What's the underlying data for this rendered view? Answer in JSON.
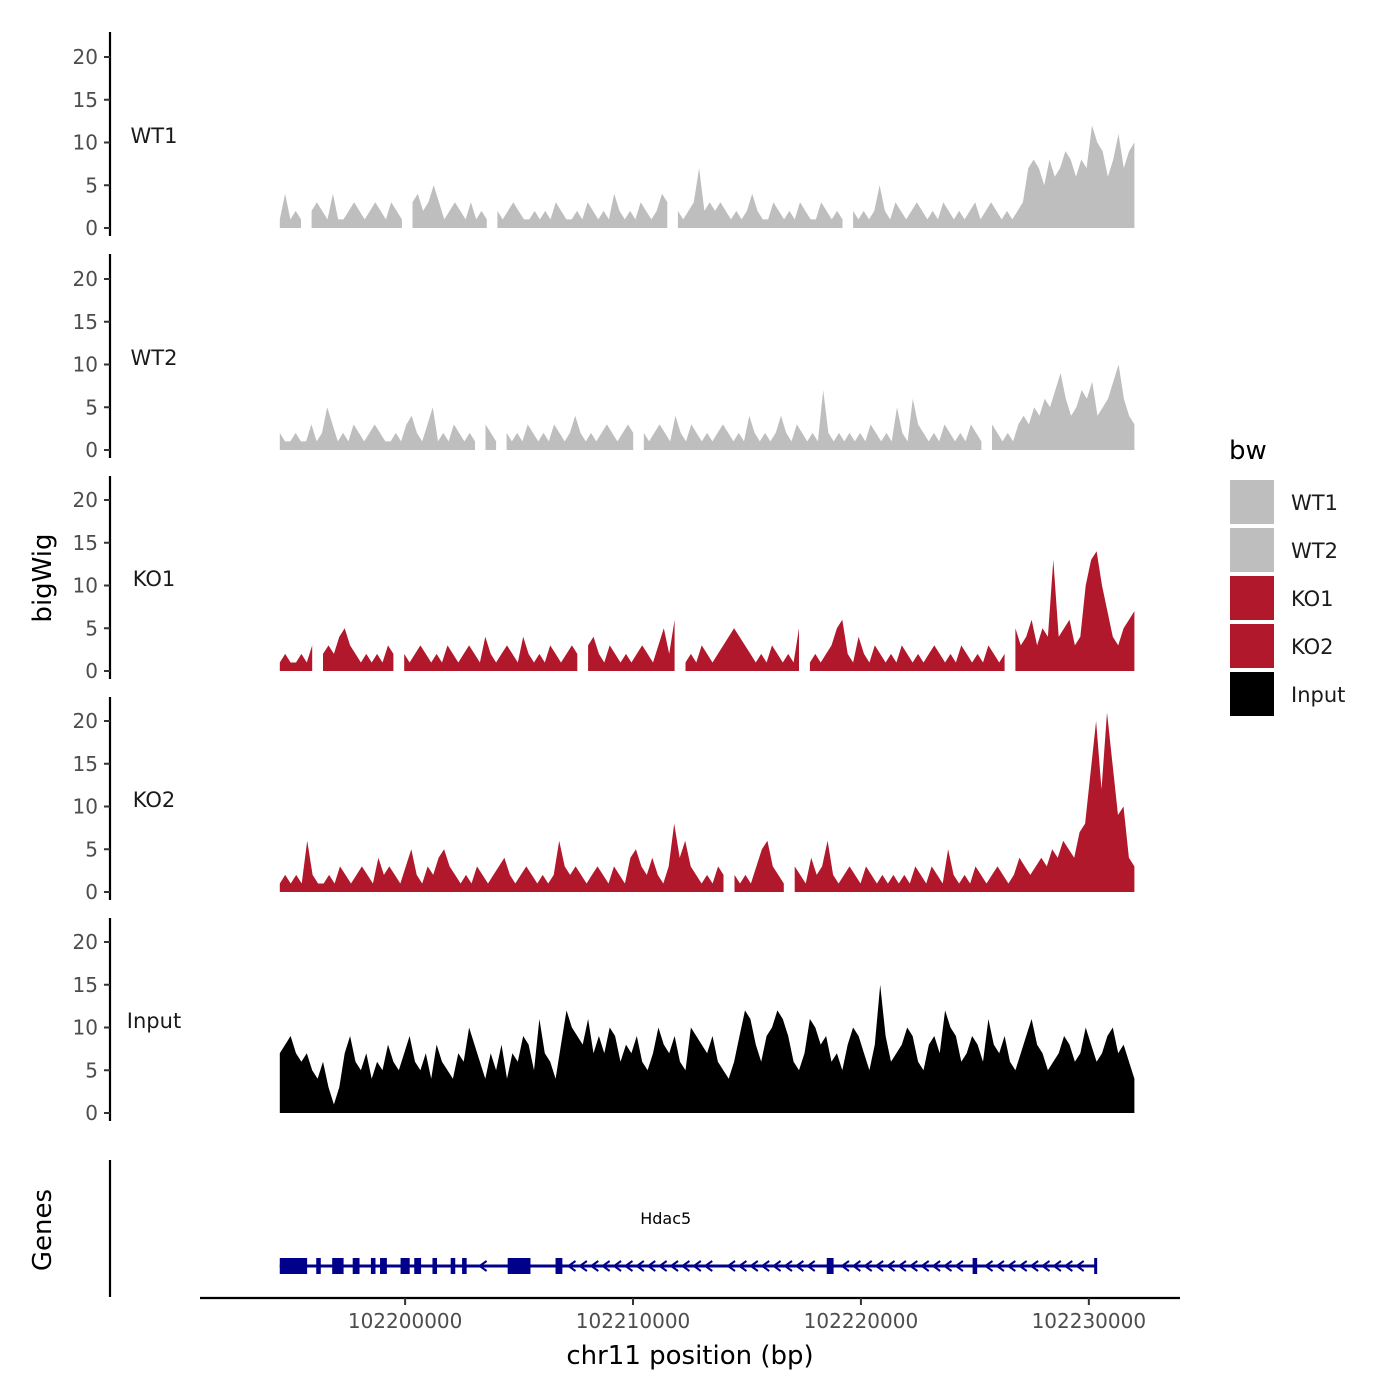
{
  "chart_data": {
    "type": "area",
    "ylabel": "bigWig",
    "xlabel": "chr11 position (bp)",
    "genes_label": "Genes",
    "legend_title": "bw",
    "legend": [
      {
        "name": "WT1",
        "color": "#bebebe"
      },
      {
        "name": "WT2",
        "color": "#bebebe"
      },
      {
        "name": "KO1",
        "color": "#b2182b"
      },
      {
        "name": "KO2",
        "color": "#b2182b"
      },
      {
        "name": "Input",
        "color": "#000000"
      }
    ],
    "ylim": [
      0,
      22
    ],
    "yticks": [
      0,
      5,
      10,
      15,
      20
    ],
    "xlim": [
      102191000,
      102234000
    ],
    "data_range": [
      102194500,
      102232000
    ],
    "xticks": [
      {
        "value": 102200000,
        "label": "102200000"
      },
      {
        "value": 102210000,
        "label": "102210000"
      },
      {
        "value": 102220000,
        "label": "102220000"
      },
      {
        "value": 102230000,
        "label": "102230000"
      }
    ],
    "tracks": [
      {
        "name": "WT1",
        "color": "#bebebe",
        "gaps": [
          [
            102195500,
            102195800
          ],
          [
            102200000,
            102200200
          ],
          [
            102203700,
            102203900
          ],
          [
            102211600,
            102211800
          ],
          [
            102219300,
            102219500
          ]
        ],
        "values": [
          1,
          4,
          1,
          2,
          1,
          1,
          2,
          3,
          2,
          1,
          4,
          1,
          1,
          2,
          3,
          2,
          1,
          2,
          3,
          2,
          1,
          3,
          2,
          1,
          1,
          3,
          4,
          2,
          3,
          5,
          3,
          1,
          2,
          3,
          2,
          1,
          3,
          1,
          2,
          1,
          1,
          2,
          1,
          2,
          3,
          2,
          1,
          1,
          2,
          1,
          2,
          1,
          3,
          2,
          1,
          1,
          2,
          1,
          3,
          2,
          1,
          2,
          1,
          4,
          2,
          1,
          2,
          1,
          3,
          2,
          1,
          2,
          4,
          3,
          1,
          2,
          1,
          2,
          3,
          7,
          2,
          3,
          2,
          3,
          2,
          1,
          2,
          1,
          2,
          4,
          2,
          1,
          1,
          3,
          2,
          1,
          2,
          1,
          3,
          2,
          1,
          1,
          3,
          2,
          1,
          2,
          1,
          3,
          2,
          1,
          2,
          1,
          2,
          5,
          2,
          1,
          3,
          2,
          1,
          2,
          3,
          2,
          1,
          2,
          1,
          3,
          2,
          1,
          2,
          1,
          2,
          3,
          1,
          2,
          3,
          2,
          1,
          2,
          1,
          2,
          3,
          7,
          8,
          7,
          5,
          8,
          6,
          7,
          9,
          8,
          6,
          8,
          7,
          12,
          10,
          9,
          6,
          8,
          11,
          7,
          9,
          10
        ]
      },
      {
        "name": "WT2",
        "color": "#bebebe",
        "gaps": [
          [
            102203100,
            102203500
          ],
          [
            102204000,
            102204300
          ],
          [
            102210100,
            102210300
          ],
          [
            102225500,
            102225700
          ]
        ],
        "values": [
          2,
          1,
          1,
          2,
          1,
          1,
          3,
          1,
          2,
          5,
          3,
          1,
          2,
          1,
          3,
          2,
          1,
          2,
          3,
          2,
          1,
          1,
          2,
          1,
          3,
          4,
          2,
          1,
          3,
          5,
          1,
          2,
          1,
          3,
          2,
          1,
          2,
          1,
          2,
          3,
          2,
          1,
          3,
          2,
          1,
          2,
          1,
          3,
          2,
          1,
          2,
          1,
          3,
          2,
          1,
          2,
          4,
          2,
          1,
          2,
          1,
          2,
          3,
          2,
          1,
          2,
          3,
          2,
          1,
          2,
          1,
          2,
          3,
          2,
          1,
          4,
          2,
          1,
          3,
          2,
          1,
          2,
          1,
          2,
          3,
          2,
          1,
          2,
          1,
          4,
          2,
          1,
          2,
          1,
          2,
          4,
          2,
          1,
          3,
          2,
          1,
          2,
          1,
          7,
          2,
          1,
          2,
          1,
          2,
          1,
          2,
          1,
          3,
          2,
          1,
          2,
          1,
          5,
          2,
          1,
          6,
          3,
          2,
          1,
          2,
          1,
          3,
          2,
          1,
          2,
          1,
          3,
          2,
          1,
          2,
          3,
          2,
          1,
          2,
          1,
          3,
          4,
          3,
          5,
          4,
          6,
          5,
          7,
          9,
          6,
          4,
          5,
          7,
          6,
          8,
          4,
          5,
          6,
          8,
          10,
          6,
          4,
          3
        ]
      },
      {
        "name": "KO1",
        "color": "#b2182b",
        "gaps": [
          [
            102196000,
            102196200
          ],
          [
            102199600,
            102199800
          ],
          [
            102207600,
            102207800
          ],
          [
            102212000,
            102212200
          ],
          [
            102217300,
            102217600
          ],
          [
            102219200,
            102219400
          ],
          [
            102226400,
            102226700
          ]
        ],
        "values": [
          1,
          2,
          1,
          1,
          2,
          1,
          3,
          1,
          2,
          3,
          2,
          4,
          5,
          3,
          2,
          1,
          2,
          1,
          2,
          1,
          3,
          2,
          1,
          2,
          1,
          2,
          3,
          2,
          1,
          2,
          1,
          3,
          2,
          1,
          2,
          3,
          2,
          1,
          4,
          2,
          1,
          2,
          3,
          2,
          1,
          4,
          2,
          1,
          2,
          1,
          3,
          2,
          1,
          2,
          3,
          2,
          1,
          3,
          4,
          2,
          1,
          3,
          2,
          1,
          2,
          1,
          2,
          3,
          2,
          1,
          3,
          5,
          2,
          6,
          3,
          1,
          2,
          1,
          3,
          2,
          1,
          2,
          3,
          4,
          5,
          4,
          3,
          2,
          1,
          2,
          1,
          3,
          2,
          1,
          2,
          1,
          5,
          2,
          1,
          2,
          1,
          2,
          3,
          5,
          6,
          2,
          1,
          4,
          2,
          1,
          3,
          2,
          1,
          2,
          1,
          3,
          2,
          1,
          2,
          1,
          2,
          3,
          2,
          1,
          2,
          1,
          3,
          2,
          1,
          2,
          1,
          3,
          2,
          1,
          2,
          4,
          5,
          3,
          4,
          6,
          3,
          5,
          4,
          13,
          4,
          5,
          6,
          3,
          4,
          10,
          13,
          14,
          10,
          7,
          4,
          3,
          5,
          6,
          7
        ]
      },
      {
        "name": "KO2",
        "color": "#b2182b",
        "gaps": [
          [
            102197400,
            102197600
          ],
          [
            102214200,
            102214400
          ],
          [
            102216800,
            102217000
          ],
          [
            102225300,
            102225500
          ]
        ],
        "values": [
          1,
          2,
          1,
          2,
          1,
          6,
          2,
          1,
          1,
          2,
          1,
          3,
          2,
          1,
          2,
          3,
          2,
          1,
          4,
          2,
          3,
          2,
          1,
          3,
          5,
          2,
          1,
          3,
          2,
          4,
          5,
          3,
          2,
          1,
          2,
          1,
          3,
          2,
          1,
          2,
          3,
          4,
          2,
          1,
          2,
          3,
          2,
          1,
          2,
          1,
          2,
          6,
          3,
          2,
          3,
          2,
          1,
          2,
          3,
          2,
          1,
          3,
          2,
          1,
          4,
          5,
          3,
          2,
          4,
          2,
          1,
          3,
          8,
          4,
          6,
          3,
          2,
          1,
          2,
          1,
          3,
          2,
          1,
          2,
          1,
          2,
          1,
          3,
          5,
          6,
          3,
          2,
          1,
          2,
          3,
          2,
          1,
          4,
          2,
          3,
          6,
          2,
          1,
          2,
          3,
          2,
          1,
          3,
          2,
          1,
          2,
          1,
          2,
          1,
          2,
          1,
          3,
          2,
          1,
          3,
          2,
          1,
          5,
          2,
          1,
          2,
          1,
          3,
          2,
          1,
          2,
          3,
          2,
          1,
          2,
          4,
          3,
          2,
          3,
          4,
          3,
          5,
          4,
          6,
          5,
          4,
          7,
          8,
          14,
          20,
          12,
          21,
          15,
          9,
          10,
          4,
          3
        ]
      },
      {
        "name": "Input",
        "color": "#000000",
        "gaps": [],
        "values": [
          7,
          8,
          9,
          7,
          6,
          7,
          5,
          4,
          6,
          3,
          1,
          3,
          7,
          9,
          6,
          5,
          7,
          4,
          6,
          5,
          8,
          6,
          5,
          7,
          9,
          6,
          5,
          7,
          4,
          8,
          6,
          5,
          4,
          7,
          6,
          10,
          8,
          6,
          4,
          7,
          5,
          8,
          4,
          7,
          6,
          9,
          8,
          5,
          11,
          7,
          6,
          4,
          8,
          12,
          10,
          9,
          8,
          11,
          7,
          9,
          7,
          10,
          9,
          6,
          8,
          7,
          9,
          6,
          5,
          7,
          10,
          8,
          7,
          9,
          6,
          5,
          10,
          9,
          8,
          7,
          9,
          6,
          5,
          4,
          6,
          9,
          12,
          11,
          8,
          6,
          9,
          10,
          12,
          11,
          9,
          6,
          5,
          7,
          11,
          10,
          8,
          9,
          6,
          7,
          5,
          8,
          10,
          9,
          7,
          5,
          8,
          15,
          9,
          6,
          7,
          8,
          10,
          9,
          6,
          5,
          8,
          9,
          7,
          12,
          10,
          9,
          6,
          7,
          9,
          8,
          6,
          11,
          8,
          7,
          9,
          6,
          5,
          7,
          9,
          11,
          8,
          7,
          5,
          6,
          7,
          9,
          8,
          6,
          7,
          10,
          8,
          6,
          7,
          9,
          10,
          7,
          8,
          6,
          4
        ]
      }
    ],
    "gene": {
      "name": "Hdac5",
      "start": 102194500,
      "end": 102230300,
      "strand": "-",
      "color": "#00008b",
      "exons": [
        [
          102194500,
          102195700
        ],
        [
          102196100,
          102196300
        ],
        [
          102196800,
          102197300
        ],
        [
          102197700,
          102198000
        ],
        [
          102198500,
          102198700
        ],
        [
          102198900,
          102199200
        ],
        [
          102199800,
          102200200
        ],
        [
          102200400,
          102200700
        ],
        [
          102201200,
          102201400
        ],
        [
          102202000,
          102202200
        ],
        [
          102202500,
          102202700
        ],
        [
          102204500,
          102205500
        ],
        [
          102206600,
          102206900
        ],
        [
          102218500,
          102218800
        ],
        [
          102224900,
          102225100
        ]
      ],
      "arrows": [
        102200000,
        102203400,
        102207300,
        102207800,
        102208300,
        102208800,
        102209300,
        102209800,
        102210300,
        102210800,
        102211300,
        102211800,
        102212300,
        102212800,
        102213300,
        102214300,
        102214800,
        102215300,
        102215800,
        102216300,
        102216800,
        102217300,
        102217800,
        102219300,
        102219800,
        102220300,
        102220800,
        102221300,
        102221800,
        102222300,
        102222800,
        102223300,
        102223800,
        102224300,
        102225600,
        102226100,
        102226600,
        102227100,
        102227600,
        102228100,
        102228600,
        102229100,
        102229600
      ]
    }
  }
}
